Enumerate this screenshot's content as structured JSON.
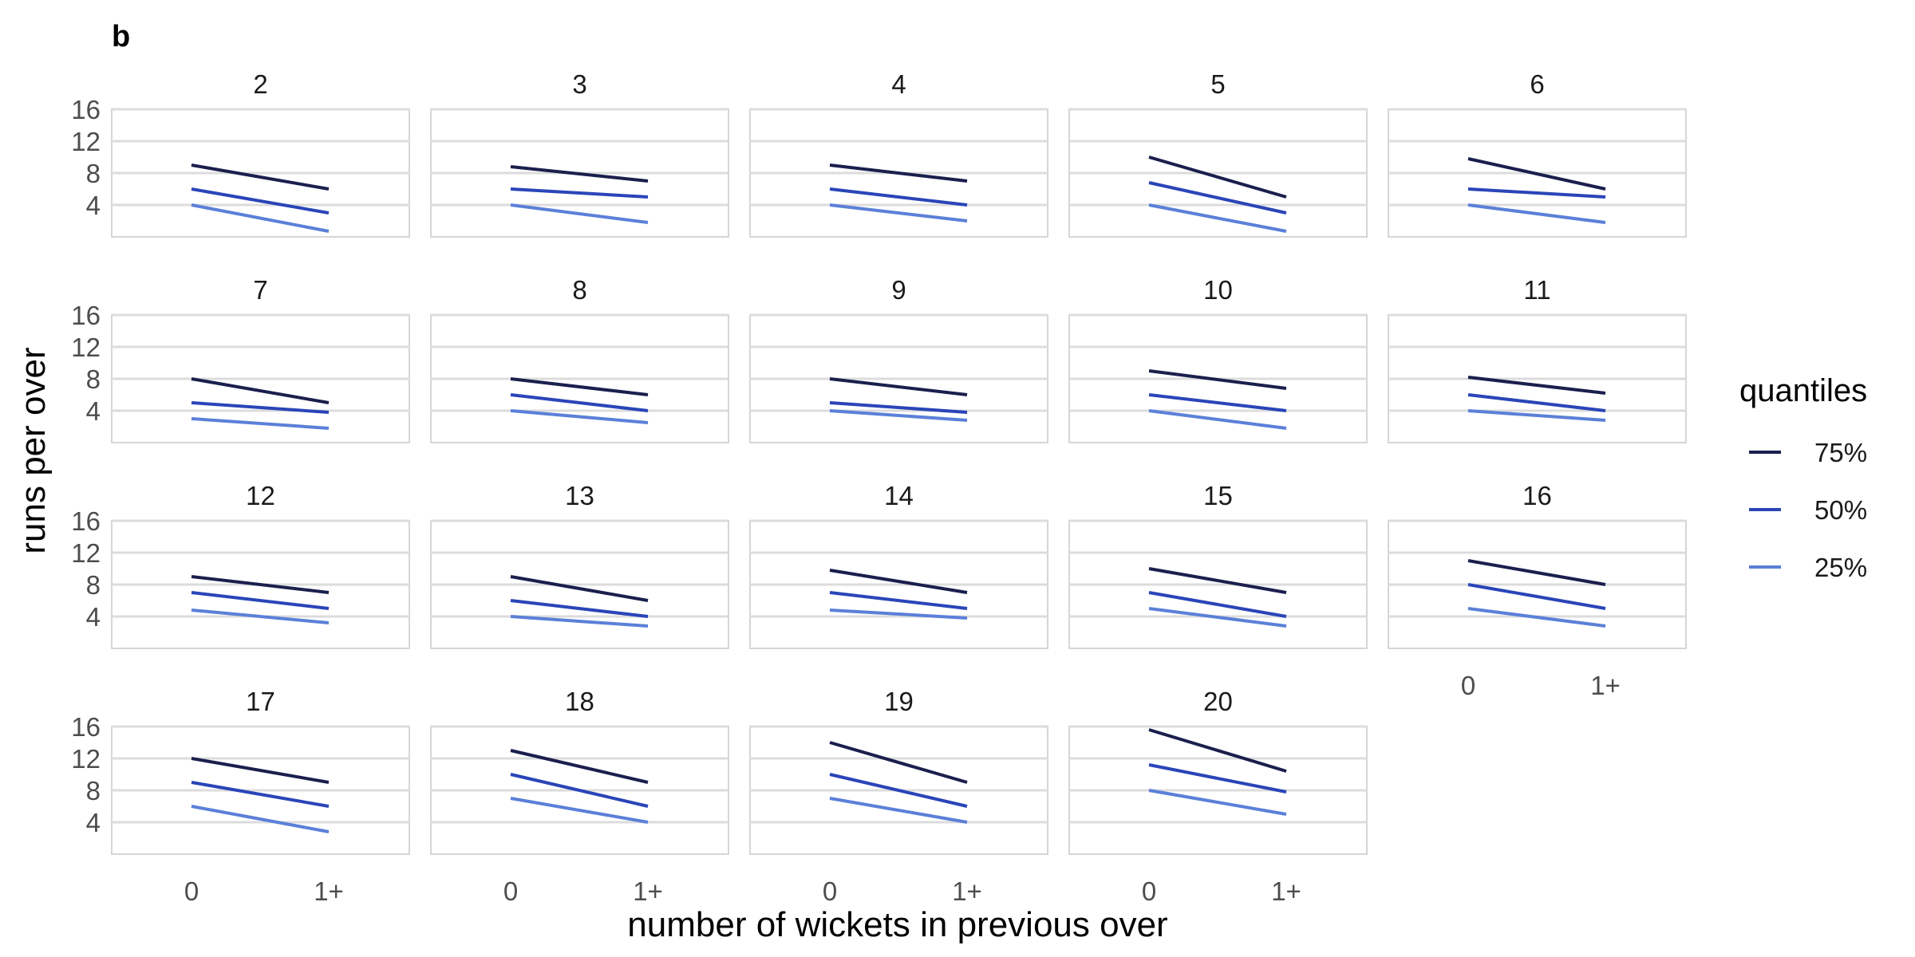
{
  "chart_data": {
    "type": "line",
    "tag": "b",
    "xlabel": "number of wickets in previous over",
    "ylabel": "runs per over",
    "x_categories": [
      "0",
      "1+"
    ],
    "y_ticks": [
      4,
      8,
      12,
      16
    ],
    "ylim": [
      0,
      16
    ],
    "grid": true,
    "legend": {
      "title": "quantiles",
      "placement": "right",
      "entries": [
        {
          "label": "75%",
          "color": "#1a1f4d"
        },
        {
          "label": "50%",
          "color": "#2a45b8"
        },
        {
          "label": "25%",
          "color": "#5b80d8"
        }
      ]
    },
    "facets": [
      {
        "label": "2",
        "q75": [
          9,
          6
        ],
        "q50": [
          6,
          3
        ],
        "q25": [
          4,
          0.7
        ]
      },
      {
        "label": "3",
        "q75": [
          8.8,
          7
        ],
        "q50": [
          6,
          5
        ],
        "q25": [
          4,
          1.8
        ]
      },
      {
        "label": "4",
        "q75": [
          9,
          7
        ],
        "q50": [
          6,
          4
        ],
        "q25": [
          4,
          2
        ]
      },
      {
        "label": "5",
        "q75": [
          10,
          5
        ],
        "q50": [
          6.8,
          3
        ],
        "q25": [
          4,
          0.7
        ]
      },
      {
        "label": "6",
        "q75": [
          9.8,
          6
        ],
        "q50": [
          6,
          5
        ],
        "q25": [
          4,
          1.8
        ]
      },
      {
        "label": "7",
        "q75": [
          8,
          5
        ],
        "q50": [
          5,
          3.8
        ],
        "q25": [
          3,
          1.8
        ]
      },
      {
        "label": "8",
        "q75": [
          8,
          6
        ],
        "q50": [
          6,
          4
        ],
        "q25": [
          4,
          2.5
        ]
      },
      {
        "label": "9",
        "q75": [
          8,
          6
        ],
        "q50": [
          5,
          3.8
        ],
        "q25": [
          4,
          2.8
        ]
      },
      {
        "label": "10",
        "q75": [
          9,
          6.8
        ],
        "q50": [
          6,
          4
        ],
        "q25": [
          4,
          1.8
        ]
      },
      {
        "label": "11",
        "q75": [
          8.2,
          6.2
        ],
        "q50": [
          6,
          4
        ],
        "q25": [
          4,
          2.8
        ]
      },
      {
        "label": "12",
        "q75": [
          9,
          7
        ],
        "q50": [
          7,
          5
        ],
        "q25": [
          4.8,
          3.2
        ]
      },
      {
        "label": "13",
        "q75": [
          9,
          6
        ],
        "q50": [
          6,
          4
        ],
        "q25": [
          4,
          2.8
        ]
      },
      {
        "label": "14",
        "q75": [
          9.8,
          7
        ],
        "q50": [
          7,
          5
        ],
        "q25": [
          4.8,
          3.8
        ]
      },
      {
        "label": "15",
        "q75": [
          10,
          7
        ],
        "q50": [
          7,
          4
        ],
        "q25": [
          5,
          2.8
        ]
      },
      {
        "label": "16",
        "q75": [
          11,
          8
        ],
        "q50": [
          8,
          5
        ],
        "q25": [
          5,
          2.8
        ]
      },
      {
        "label": "17",
        "q75": [
          12,
          9
        ],
        "q50": [
          9,
          6
        ],
        "q25": [
          6,
          2.8
        ]
      },
      {
        "label": "18",
        "q75": [
          13,
          9
        ],
        "q50": [
          10,
          6
        ],
        "q25": [
          7,
          4
        ]
      },
      {
        "label": "19",
        "q75": [
          14,
          9
        ],
        "q50": [
          10,
          6
        ],
        "q25": [
          7,
          4
        ]
      },
      {
        "label": "20",
        "q75": [
          15.6,
          10.4
        ],
        "q50": [
          11.2,
          7.8
        ],
        "q25": [
          8,
          5
        ]
      }
    ]
  }
}
